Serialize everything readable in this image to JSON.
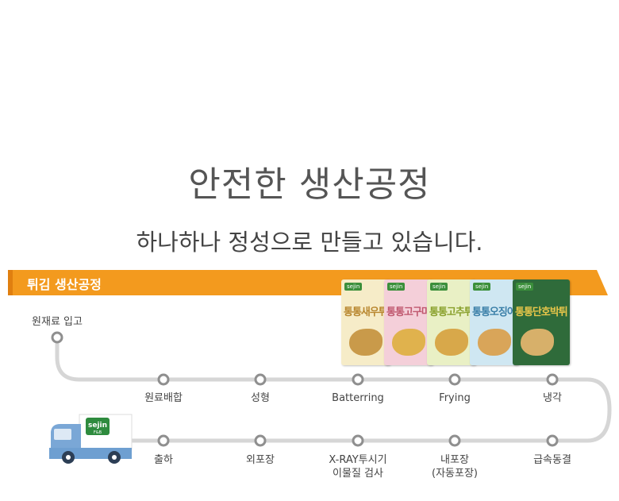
{
  "header": {
    "title": "안전한 생산공정",
    "subtitle": "하나하나 정성으로 만들고 있습니다."
  },
  "banner": {
    "label": "튀김 생산공정",
    "color": "#f39a1e"
  },
  "truck": {
    "brand": "sejin",
    "brand_sub": "F&B"
  },
  "products": [
    {
      "name": "통통새우튀김",
      "color": "#f6ecc8",
      "text": "#b8862e"
    },
    {
      "name": "통통고구마튀김",
      "color": "#f4cfd9",
      "text": "#c0586f"
    },
    {
      "name": "통통고추튀김",
      "color": "#e9f0c5",
      "text": "#8aa12e"
    },
    {
      "name": "통통오징어튀김",
      "color": "#cfe7f2",
      "text": "#3a7fa8"
    },
    {
      "name": "통통단호박튀김",
      "color": "#2f6b3a",
      "text": "#e8c64a"
    }
  ],
  "steps": {
    "start": "원재료 입고",
    "row1": [
      "원료배합",
      "성형",
      "Batterring",
      "Frying",
      "냉각"
    ],
    "row2": [
      "출하",
      "외포장",
      "X-RAY투시기",
      "내포장",
      "급속동결"
    ],
    "row2_second_line": [
      "",
      "",
      "이물질 검사",
      "(자동포장)",
      ""
    ]
  }
}
